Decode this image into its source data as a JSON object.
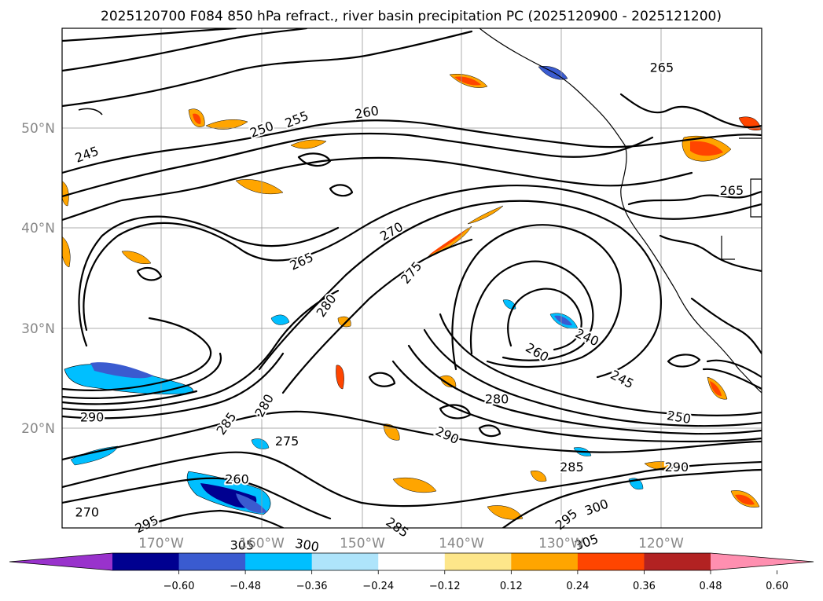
{
  "title": "2025120700 F084 850 hPa refract., river basin precipitation PC (2025120900 - 2025121200)",
  "map": {
    "lat_labels": [
      "50°N",
      "40°N",
      "30°N",
      "20°N"
    ],
    "lon_labels": [
      "170°W",
      "160°W",
      "150°W",
      "140°W",
      "130°W",
      "120°W"
    ],
    "contour_labels": [
      {
        "text": "245",
        "lon": -177.5,
        "lat": 47.3,
        "rot": -20
      },
      {
        "text": "250",
        "lon": -160.0,
        "lat": 49.8,
        "rot": -20
      },
      {
        "text": "255",
        "lon": -156.5,
        "lat": 50.8,
        "rot": -22
      },
      {
        "text": "260",
        "lon": -149.5,
        "lat": 51.5,
        "rot": -10
      },
      {
        "text": "265",
        "lon": -156.0,
        "lat": 36.6,
        "rot": -25
      },
      {
        "text": "270",
        "lon": -147.0,
        "lat": 39.6,
        "rot": -30
      },
      {
        "text": "275",
        "lon": -145.0,
        "lat": 35.5,
        "rot": -50
      },
      {
        "text": "280",
        "lon": -153.5,
        "lat": 32.2,
        "rot": -55
      },
      {
        "text": "260",
        "lon": -132.5,
        "lat": 27.5,
        "rot": 30
      },
      {
        "text": "240",
        "lon": -127.5,
        "lat": 29.0,
        "rot": 25
      },
      {
        "text": "245",
        "lon": -124.0,
        "lat": 24.8,
        "rot": 28
      },
      {
        "text": "250",
        "lon": -118.3,
        "lat": 21.0,
        "rot": 10
      },
      {
        "text": "280",
        "lon": -159.7,
        "lat": 22.2,
        "rot": -60
      },
      {
        "text": "285",
        "lon": -163.5,
        "lat": 20.4,
        "rot": -55
      },
      {
        "text": "275",
        "lon": -157.5,
        "lat": 18.6,
        "rot": 0
      },
      {
        "text": "280",
        "lon": -136.5,
        "lat": 22.8,
        "rot": 0
      },
      {
        "text": "290",
        "lon": -141.5,
        "lat": 19.2,
        "rot": 25
      },
      {
        "text": "285",
        "lon": -129.0,
        "lat": 16.0,
        "rot": 0
      },
      {
        "text": "290",
        "lon": -118.5,
        "lat": 16.0,
        "rot": 0
      },
      {
        "text": "300",
        "lon": -126.5,
        "lat": 12.0,
        "rot": -20
      },
      {
        "text": "295",
        "lon": -129.5,
        "lat": 10.8,
        "rot": -40
      },
      {
        "text": "305",
        "lon": -127.5,
        "lat": 8.5,
        "rot": -20
      },
      {
        "text": "285",
        "lon": -146.5,
        "lat": 10.0,
        "rot": 35
      },
      {
        "text": "300",
        "lon": -155.5,
        "lat": 8.2,
        "rot": 10
      },
      {
        "text": "305",
        "lon": -162.0,
        "lat": 8.2,
        "rot": 0
      },
      {
        "text": "295",
        "lon": -171.5,
        "lat": 10.3,
        "rot": -25
      },
      {
        "text": "270",
        "lon": -177.5,
        "lat": 11.5,
        "rot": 0
      },
      {
        "text": "290",
        "lon": -177.0,
        "lat": 21.0,
        "rot": 0
      },
      {
        "text": "260",
        "lon": -162.5,
        "lat": 14.8,
        "rot": 0
      },
      {
        "text": "265",
        "lon": -120.0,
        "lat": 56.0,
        "rot": 0
      },
      {
        "text": "265",
        "lon": -113.0,
        "lat": 43.7,
        "rot": 0
      }
    ]
  },
  "colorbar": {
    "tick_labels": [
      "−0.60",
      "−0.48",
      "−0.36",
      "−0.24",
      "−0.12",
      "0.12",
      "0.24",
      "0.36",
      "0.48",
      "0.60"
    ],
    "colors": [
      "#9932cc",
      "#000090",
      "#3a5bd0",
      "#00bfff",
      "#aee4fb",
      "#ffffff",
      "#fde68a",
      "#ffa500",
      "#ff4500",
      "#b22222",
      "#ff8fb0"
    ]
  }
}
